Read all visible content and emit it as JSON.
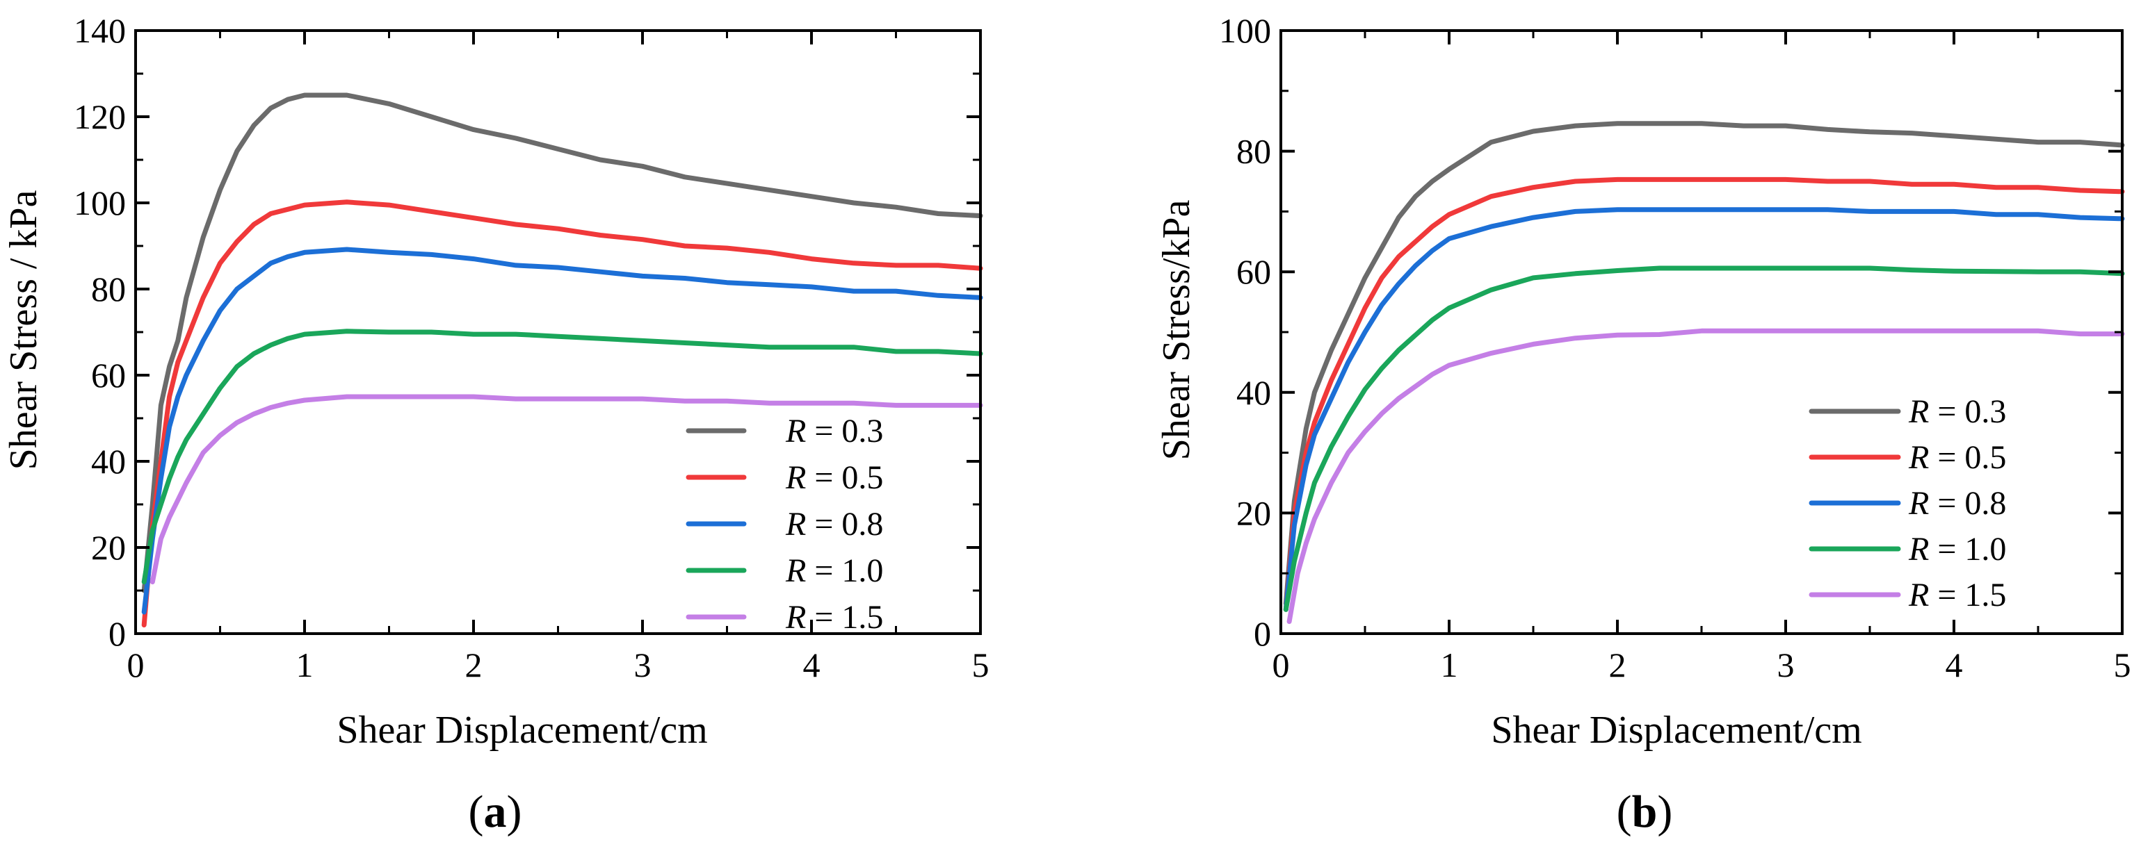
{
  "colors": {
    "R_0.3": "#6b6b6b",
    "R_0.5": "#f0393a",
    "R_0.8": "#1c6fd6",
    "R_1.0": "#1aa65a",
    "R_1.5": "#c47fe6"
  },
  "chart_data": [
    {
      "type": "line",
      "caption": "(a)",
      "caption_letter": "a",
      "xlabel": "Shear Displacement/cm",
      "ylabel": "Shear Stress / kPa",
      "xlim": [
        0,
        5
      ],
      "ylim": [
        0,
        140
      ],
      "xticks": [
        0,
        1,
        2,
        3,
        4,
        5
      ],
      "yticks": [
        0,
        20,
        40,
        60,
        80,
        100,
        120,
        140
      ],
      "grid": false,
      "legend_position": "bottom-right",
      "series": [
        {
          "name": "R = 0.3",
          "var": "R",
          "value": "0.3",
          "color_key": "R_0.3",
          "x": [
            0.05,
            0.1,
            0.15,
            0.2,
            0.25,
            0.3,
            0.4,
            0.5,
            0.6,
            0.7,
            0.8,
            0.9,
            1.0,
            1.1,
            1.25,
            1.5,
            1.75,
            2.0,
            2.25,
            2.5,
            2.75,
            3.0,
            3.25,
            3.5,
            3.75,
            4.0,
            4.25,
            4.5,
            4.75,
            5.0
          ],
          "y": [
            10,
            30,
            53,
            62,
            68,
            78,
            92,
            103,
            112,
            118,
            122,
            124,
            125,
            125,
            125,
            123,
            120,
            117,
            115,
            112.5,
            110,
            108.5,
            106,
            104.5,
            103,
            101.5,
            100,
            99,
            97.5,
            97
          ]
        },
        {
          "name": "R = 0.5",
          "var": "R",
          "value": "0.5",
          "color_key": "R_0.5",
          "x": [
            0.05,
            0.1,
            0.15,
            0.2,
            0.25,
            0.3,
            0.4,
            0.5,
            0.6,
            0.7,
            0.8,
            0.9,
            1.0,
            1.25,
            1.5,
            1.75,
            2.0,
            2.25,
            2.5,
            2.75,
            3.0,
            3.25,
            3.5,
            3.75,
            4.0,
            4.25,
            4.5,
            4.75,
            5.0
          ],
          "y": [
            2,
            25,
            40,
            55,
            63,
            68,
            78,
            86,
            91,
            95,
            97.5,
            98.5,
            99.5,
            100.2,
            99.5,
            98,
            96.5,
            95,
            94,
            92.5,
            91.5,
            90,
            89.5,
            88.5,
            87,
            86,
            85.5,
            85.5,
            84.8
          ]
        },
        {
          "name": "R = 0.8",
          "var": "R",
          "value": "0.8",
          "color_key": "R_0.8",
          "x": [
            0.05,
            0.1,
            0.15,
            0.2,
            0.25,
            0.3,
            0.4,
            0.5,
            0.6,
            0.7,
            0.8,
            0.9,
            1.0,
            1.25,
            1.5,
            1.75,
            2.0,
            2.25,
            2.5,
            2.75,
            3.0,
            3.25,
            3.5,
            3.75,
            4.0,
            4.25,
            4.5,
            4.75,
            5.0
          ],
          "y": [
            5,
            22,
            36,
            48,
            55,
            60,
            68,
            75,
            80,
            83,
            86,
            87.5,
            88.5,
            89.2,
            88.5,
            88,
            87,
            85.5,
            85,
            84,
            83,
            82.5,
            81.5,
            81,
            80.5,
            79.5,
            79.5,
            78.5,
            78
          ]
        },
        {
          "name": "R = 1.0",
          "var": "R",
          "value": "1.0",
          "color_key": "R_1.0",
          "x": [
            0.05,
            0.1,
            0.15,
            0.2,
            0.25,
            0.3,
            0.4,
            0.5,
            0.6,
            0.7,
            0.8,
            0.9,
            1.0,
            1.25,
            1.5,
            1.75,
            2.0,
            2.25,
            2.5,
            2.75,
            3.0,
            3.25,
            3.5,
            3.75,
            4.0,
            4.25,
            4.5,
            4.75,
            5.0
          ],
          "y": [
            12,
            24,
            30,
            36,
            41,
            45,
            51,
            57,
            62,
            65,
            67,
            68.5,
            69.5,
            70.2,
            70,
            70,
            69.5,
            69.5,
            69,
            68.5,
            68,
            67.5,
            67,
            66.5,
            66.5,
            66.5,
            65.5,
            65.5,
            65
          ]
        },
        {
          "name": "R = 1.5",
          "var": "R",
          "value": "1.5",
          "color_key": "R_1.5",
          "x": [
            0.1,
            0.15,
            0.2,
            0.25,
            0.3,
            0.4,
            0.5,
            0.6,
            0.7,
            0.8,
            0.9,
            1.0,
            1.25,
            1.5,
            1.75,
            2.0,
            2.25,
            2.5,
            2.75,
            3.0,
            3.25,
            3.5,
            3.75,
            4.0,
            4.25,
            4.5,
            4.75,
            5.0
          ],
          "y": [
            12,
            22,
            27,
            31,
            35,
            42,
            46,
            49,
            51,
            52.5,
            53.5,
            54.2,
            55,
            55,
            55,
            55,
            54.5,
            54.5,
            54.5,
            54.5,
            54,
            54,
            53.5,
            53.5,
            53.5,
            53,
            53,
            53
          ]
        }
      ],
      "legend_labels": [
        {
          "var": "R",
          "rest": " = 0.3",
          "color_key": "R_0.3"
        },
        {
          "var": "R",
          "rest": " = 0.5",
          "color_key": "R_0.5"
        },
        {
          "var": "R",
          "rest": " = 0.8",
          "color_key": "R_0.8"
        },
        {
          "var": "R",
          "rest": " = 1.0",
          "color_key": "R_1.0"
        },
        {
          "var": "R",
          "rest": " = 1.5",
          "color_key": "R_1.5"
        }
      ]
    },
    {
      "type": "line",
      "caption": "(b)",
      "caption_letter": "b",
      "xlabel": "Shear Displacement/cm",
      "ylabel": "Shear Stress/kPa",
      "xlim": [
        0,
        5
      ],
      "ylim": [
        0,
        100
      ],
      "xticks": [
        0,
        1,
        2,
        3,
        4,
        5
      ],
      "yticks": [
        0,
        20,
        40,
        60,
        80,
        100
      ],
      "grid": false,
      "legend_position": "bottom-right",
      "series": [
        {
          "name": "R = 0.3",
          "var": "R",
          "value": "0.3",
          "color_key": "R_0.3",
          "x": [
            0.03,
            0.08,
            0.15,
            0.2,
            0.3,
            0.4,
            0.5,
            0.6,
            0.7,
            0.8,
            0.9,
            1.0,
            1.25,
            1.5,
            1.75,
            2.0,
            2.5,
            2.75,
            3.0,
            3.25,
            3.5,
            3.75,
            4.0,
            4.25,
            4.5,
            4.75,
            5.0
          ],
          "y": [
            5,
            22,
            34,
            40,
            47,
            53,
            59,
            64,
            69,
            72.5,
            75,
            77,
            81.5,
            83.3,
            84.2,
            84.6,
            84.6,
            84.2,
            84.2,
            83.6,
            83.2,
            83,
            82.5,
            82,
            81.5,
            81.5,
            81
          ]
        },
        {
          "name": "R = 0.5",
          "var": "R",
          "value": "0.5",
          "color_key": "R_0.5",
          "x": [
            0.03,
            0.08,
            0.15,
            0.2,
            0.3,
            0.4,
            0.5,
            0.6,
            0.7,
            0.8,
            0.9,
            1.0,
            1.25,
            1.5,
            1.75,
            2.0,
            2.5,
            3.0,
            3.25,
            3.5,
            3.75,
            4.0,
            4.25,
            4.5,
            4.75,
            5.0
          ],
          "y": [
            4,
            20,
            30,
            35,
            42,
            48,
            54,
            59,
            62.5,
            65,
            67.5,
            69.5,
            72.5,
            74,
            75,
            75.3,
            75.3,
            75.3,
            75,
            75,
            74.5,
            74.5,
            74,
            74,
            73.5,
            73.3
          ]
        },
        {
          "name": "R = 0.8",
          "var": "R",
          "value": "0.8",
          "color_key": "R_0.8",
          "x": [
            0.03,
            0.08,
            0.15,
            0.2,
            0.3,
            0.4,
            0.5,
            0.6,
            0.7,
            0.8,
            0.9,
            1.0,
            1.25,
            1.5,
            1.75,
            2.0,
            2.5,
            3.0,
            3.25,
            3.5,
            3.75,
            4.0,
            4.25,
            4.5,
            4.75,
            5.0
          ],
          "y": [
            4,
            18,
            28,
            33,
            39,
            45,
            50,
            54.5,
            58,
            61,
            63.5,
            65.5,
            67.5,
            69,
            70,
            70.3,
            70.3,
            70.3,
            70.3,
            70,
            70,
            70,
            69.5,
            69.5,
            69,
            68.8
          ]
        },
        {
          "name": "R = 1.0",
          "var": "R",
          "value": "1.0",
          "color_key": "R_1.0",
          "x": [
            0.03,
            0.08,
            0.15,
            0.2,
            0.3,
            0.4,
            0.5,
            0.6,
            0.7,
            0.8,
            0.9,
            1.0,
            1.25,
            1.5,
            1.75,
            2.0,
            2.25,
            2.5,
            3.0,
            3.5,
            3.75,
            4.0,
            4.5,
            4.75,
            5.0
          ],
          "y": [
            4,
            12,
            20,
            25,
            31,
            36,
            40.5,
            44,
            47,
            49.5,
            52,
            54,
            57,
            59,
            59.7,
            60.2,
            60.6,
            60.6,
            60.6,
            60.6,
            60.3,
            60.1,
            60,
            60,
            59.7
          ]
        },
        {
          "name": "R = 1.5",
          "var": "R",
          "value": "1.5",
          "color_key": "R_1.5",
          "x": [
            0.05,
            0.1,
            0.15,
            0.2,
            0.3,
            0.4,
            0.5,
            0.6,
            0.7,
            0.8,
            0.9,
            1.0,
            1.25,
            1.5,
            1.75,
            2.0,
            2.25,
            2.5,
            3.0,
            3.5,
            4.0,
            4.5,
            4.75,
            5.0
          ],
          "y": [
            2,
            10,
            15,
            19,
            25,
            30,
            33.5,
            36.5,
            39,
            41,
            43,
            44.5,
            46.5,
            48,
            49,
            49.5,
            49.6,
            50.2,
            50.2,
            50.2,
            50.2,
            50.2,
            49.7,
            49.7
          ]
        }
      ],
      "legend_labels": [
        {
          "var": "R",
          "rest": " = 0.3",
          "color_key": "R_0.3"
        },
        {
          "var": "R",
          "rest": " = 0.5",
          "color_key": "R_0.5"
        },
        {
          "var": "R",
          "rest": " = 0.8",
          "color_key": "R_0.8"
        },
        {
          "var": "R",
          "rest": " = 1.0",
          "color_key": "R_1.0"
        },
        {
          "var": "R",
          "rest": " = 1.5",
          "color_key": "R_1.5"
        }
      ]
    }
  ]
}
